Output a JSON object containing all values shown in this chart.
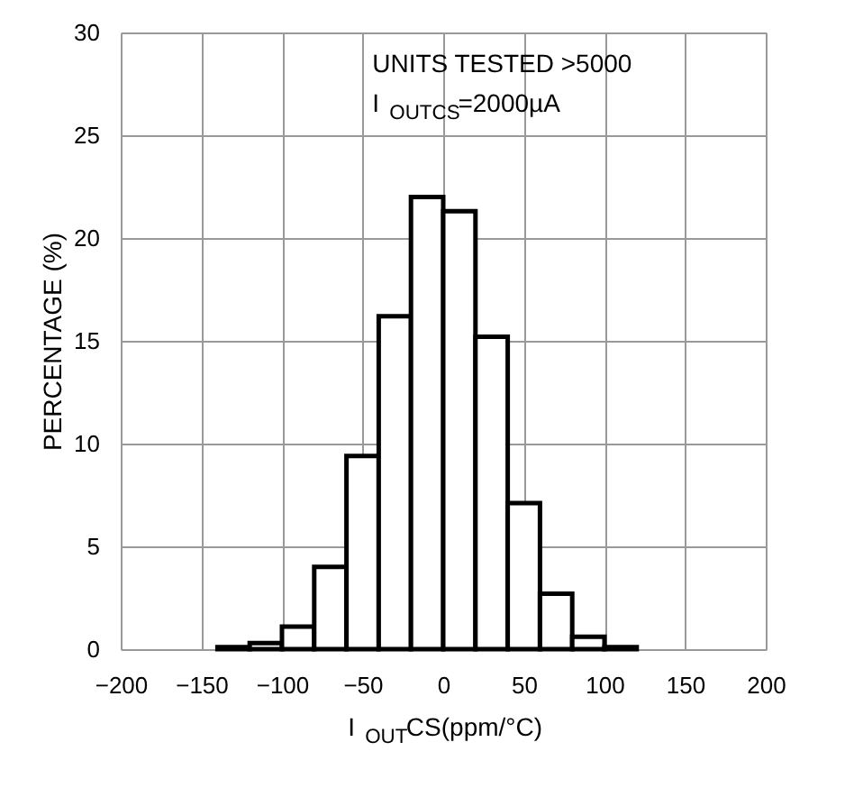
{
  "chart_data": {
    "type": "histogram",
    "bins": [
      -140,
      -120,
      -100,
      -80,
      -60,
      -40,
      -20,
      0,
      20,
      40,
      60,
      80,
      100,
      120
    ],
    "values": [
      0.1,
      0.3,
      1.1,
      4,
      9.4,
      16.2,
      22,
      21.3,
      15.2,
      7.1,
      2.7,
      0.6,
      0.1
    ],
    "color": "#000000",
    "xlabel": "I$_{OUT}$CS(ppm/°C)",
    "ylabel": "PERCENTAGE (%)",
    "annotations": [
      "UNITS TESTED >5000",
      "I$_{OUTCS}$=2000µA"
    ],
    "xlim": [
      -200,
      200
    ],
    "xticks": [
      -200,
      -150,
      -100,
      -50,
      0,
      50,
      100,
      150,
      200
    ],
    "ylim": [
      0,
      30
    ],
    "yticks": [
      0,
      5,
      10,
      15,
      20,
      25,
      30
    ],
    "grid": true
  }
}
